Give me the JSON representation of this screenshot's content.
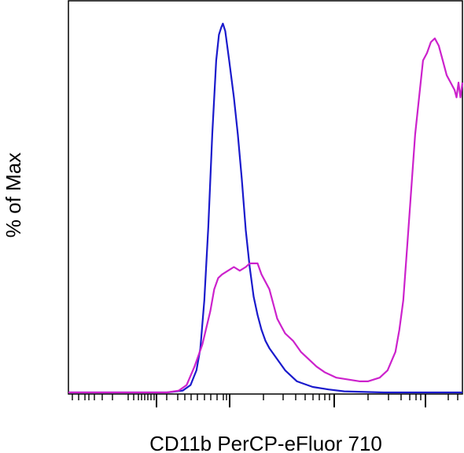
{
  "chart_data": {
    "type": "line",
    "title": "",
    "xlabel": "CD11b PerCP-eFluor 710",
    "ylabel": "% of Max",
    "x_scale": "log (biexponential)",
    "xlim": [
      0,
      100
    ],
    "ylim": [
      0,
      100
    ],
    "grid": false,
    "legend": "none",
    "series": [
      {
        "color": "#1a1acc",
        "points": [
          [
            0,
            0
          ],
          [
            25,
            0
          ],
          [
            29,
            0.5
          ],
          [
            31,
            2
          ],
          [
            32.5,
            6
          ],
          [
            33.5,
            12
          ],
          [
            34.5,
            25
          ],
          [
            35.5,
            45
          ],
          [
            36.5,
            70
          ],
          [
            37.5,
            90
          ],
          [
            38.2,
            97
          ],
          [
            38.8,
            99
          ],
          [
            39.2,
            100
          ],
          [
            39.8,
            98
          ],
          [
            40.8,
            90
          ],
          [
            42,
            80
          ],
          [
            43,
            70
          ],
          [
            44,
            58
          ],
          [
            45,
            44
          ],
          [
            46,
            34
          ],
          [
            47,
            26
          ],
          [
            48,
            21
          ],
          [
            49,
            17
          ],
          [
            50,
            14
          ],
          [
            51,
            12
          ],
          [
            53,
            9
          ],
          [
            55,
            6
          ],
          [
            58,
            3
          ],
          [
            62,
            1.5
          ],
          [
            66,
            0.8
          ],
          [
            70,
            0.3
          ],
          [
            80,
            0
          ],
          [
            100,
            0
          ]
        ]
      },
      {
        "color": "#cc22cc",
        "points": [
          [
            0,
            0
          ],
          [
            25,
            0
          ],
          [
            28,
            0.5
          ],
          [
            30,
            2
          ],
          [
            32,
            7
          ],
          [
            34,
            13
          ],
          [
            36,
            22
          ],
          [
            37,
            28
          ],
          [
            38,
            31
          ],
          [
            39,
            32
          ],
          [
            40.5,
            33
          ],
          [
            42,
            34
          ],
          [
            43.5,
            33
          ],
          [
            45,
            34
          ],
          [
            46,
            35
          ],
          [
            47,
            35
          ],
          [
            48,
            35
          ],
          [
            49,
            32
          ],
          [
            50,
            30
          ],
          [
            51,
            28
          ],
          [
            52,
            24
          ],
          [
            53,
            20
          ],
          [
            54,
            18
          ],
          [
            55,
            16
          ],
          [
            57,
            14
          ],
          [
            59,
            11
          ],
          [
            61,
            9
          ],
          [
            63,
            7
          ],
          [
            65,
            5.5
          ],
          [
            68,
            4
          ],
          [
            71,
            3.5
          ],
          [
            74,
            3
          ],
          [
            76,
            3
          ],
          [
            79,
            4
          ],
          [
            81,
            6
          ],
          [
            83,
            11
          ],
          [
            84,
            17
          ],
          [
            85,
            25
          ],
          [
            86,
            40
          ],
          [
            87,
            55
          ],
          [
            88,
            70
          ],
          [
            89,
            80
          ],
          [
            90,
            90
          ],
          [
            91,
            92
          ],
          [
            92,
            95
          ],
          [
            93,
            96
          ],
          [
            94,
            94
          ],
          [
            95,
            90
          ],
          [
            96,
            86
          ],
          [
            97,
            84
          ],
          [
            98,
            82
          ],
          [
            98.5,
            80
          ],
          [
            99,
            84
          ],
          [
            99.5,
            80
          ],
          [
            100,
            84
          ]
        ]
      }
    ]
  }
}
